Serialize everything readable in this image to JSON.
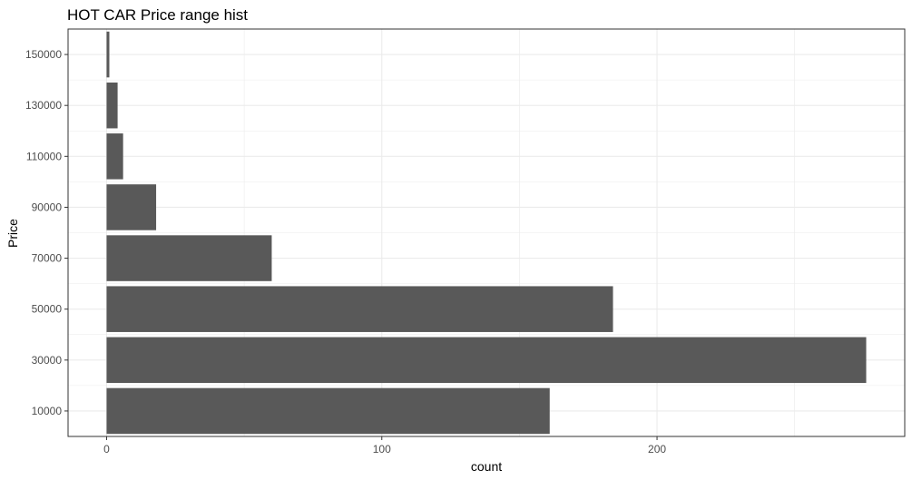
{
  "chart_data": {
    "type": "bar",
    "orientation": "horizontal",
    "title": "HOT CAR Price range hist",
    "xlabel": "count",
    "ylabel": "Price",
    "categories": [
      10000,
      30000,
      50000,
      70000,
      90000,
      110000,
      130000,
      150000
    ],
    "y_tick_labels": [
      "10000",
      "30000",
      "50000",
      "70000",
      "90000",
      "110000",
      "130000",
      "150000"
    ],
    "values": [
      161,
      276,
      184,
      60,
      18,
      6,
      4,
      1
    ],
    "xlim": [
      -14,
      290
    ],
    "x_ticks": [
      0,
      100,
      200
    ],
    "ylim": [
      0,
      160000
    ],
    "bin_width": 20000,
    "grid": true,
    "bar_color": "#595959",
    "grid_color": "#ebebeb",
    "panel_border_color": "#333333"
  }
}
